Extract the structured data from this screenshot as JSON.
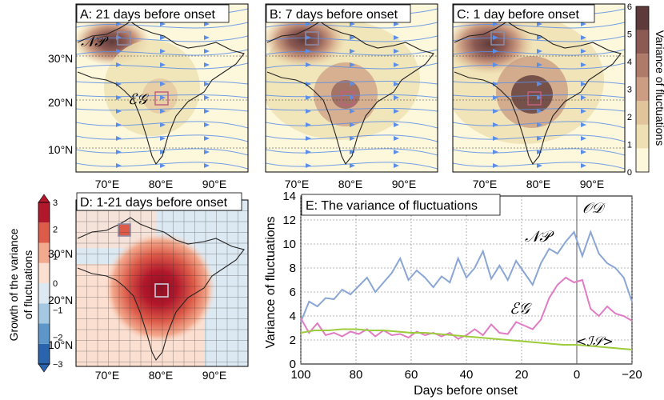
{
  "colors": {
    "land_bg": "#fdf7dc",
    "stream": "#5b8ee6",
    "np_line": "#8aa6d4",
    "eg_line": "#e07bc4",
    "is_line": "#9ccc3c",
    "box": "#8c8ca8"
  },
  "map_labels": {
    "lon": [
      "70°E",
      "80°E",
      "90°E"
    ],
    "lat": [
      "30°N",
      "20°N",
      "10°N"
    ],
    "np": "𝒩𝒫",
    "eg": "ℰ𝒢"
  },
  "panels": [
    {
      "title": "A: 21 days before onset",
      "np_intensity": 1.0,
      "eg_intensity": 0.35
    },
    {
      "title": "B: 7 days before onset",
      "np_intensity": 1.0,
      "eg_intensity": 0.65
    },
    {
      "title": "C: 1 day before onset",
      "np_intensity": 1.0,
      "eg_intensity": 0.9
    }
  ],
  "panel_d": {
    "title": "D: 1-21 days before onset"
  },
  "colorbar_variance": {
    "label": "Variance of fluctuations",
    "ticks": [
      "6",
      "5",
      "4",
      "3",
      "2",
      "1",
      "0"
    ],
    "colors": [
      "#fdf7dc",
      "#eee0b2",
      "#e2c49b",
      "#cc9d82",
      "#b07a6a",
      "#8d5a53",
      "#5e3b3a"
    ]
  },
  "colorbar_growth": {
    "label_line1": "Growth of the variance",
    "label_line2": "of fluctuations",
    "ticks": [
      "3",
      "2",
      "1",
      "0",
      "−1",
      "−2",
      "−3"
    ],
    "colors": [
      "#2a64ac",
      "#5d97c9",
      "#a4c8e2",
      "#dce9f2",
      "#fbe0d2",
      "#f3a98d",
      "#dc5b49",
      "#b2182b"
    ]
  },
  "chart_data": {
    "type": "line",
    "title": "E: The variance of fluctuations",
    "xlabel": "Days before onset",
    "ylabel": "Variance of fluctuations",
    "xlim": [
      100,
      -20
    ],
    "ylim": [
      0,
      14
    ],
    "xticks": [
      "100",
      "80",
      "60",
      "40",
      "20",
      "0",
      "−20"
    ],
    "yticks": [
      "0",
      "2",
      "4",
      "6",
      "8",
      "10",
      "12",
      "14"
    ],
    "onset_label": "𝒪𝒟",
    "onset_day": 0,
    "series": [
      {
        "name": "𝒩𝒫",
        "x": [
          100,
          97,
          94,
          91,
          88,
          85,
          82,
          79,
          76,
          73,
          70,
          67,
          64,
          61,
          58,
          55,
          52,
          49,
          46,
          43,
          40,
          37,
          34,
          31,
          28,
          25,
          22,
          19,
          16,
          13,
          10,
          7,
          4,
          1,
          -2,
          -5,
          -8,
          -11,
          -14,
          -17,
          -20
        ],
        "values": [
          3.5,
          5.2,
          4.8,
          5.5,
          5.4,
          6.2,
          5.8,
          6.5,
          7.2,
          6.0,
          6.8,
          7.6,
          8.8,
          7.0,
          7.8,
          7.2,
          6.4,
          7.3,
          6.8,
          8.8,
          7.2,
          8.0,
          9.4,
          7.1,
          8.2,
          7.0,
          8.6,
          7.6,
          6.6,
          8.4,
          9.6,
          9.2,
          10.2,
          11.0,
          9.0,
          11.0,
          9.2,
          8.4,
          8.0,
          7.2,
          5.2
        ]
      },
      {
        "name": "ℰ𝒢",
        "x": [
          100,
          97,
          94,
          91,
          88,
          85,
          82,
          79,
          76,
          73,
          70,
          67,
          64,
          61,
          58,
          55,
          52,
          49,
          46,
          43,
          40,
          37,
          34,
          31,
          28,
          25,
          22,
          19,
          16,
          13,
          10,
          7,
          4,
          1,
          -2,
          -5,
          -8,
          -11,
          -14,
          -17,
          -20
        ],
        "values": [
          3.8,
          2.6,
          3.4,
          2.4,
          2.6,
          2.3,
          2.7,
          2.5,
          2.9,
          2.3,
          2.8,
          2.4,
          2.5,
          2.2,
          2.7,
          2.4,
          2.6,
          2.3,
          2.6,
          2.1,
          2.4,
          2.9,
          2.4,
          3.3,
          2.6,
          2.5,
          3.5,
          3.2,
          2.9,
          3.7,
          5.5,
          6.6,
          7.2,
          6.8,
          7.0,
          4.6,
          4.0,
          4.8,
          4.2,
          4.0,
          3.6
        ]
      },
      {
        "name": "<ℐ𝒮>",
        "x": [
          100,
          95,
          90,
          85,
          80,
          75,
          70,
          65,
          60,
          55,
          50,
          45,
          40,
          35,
          30,
          25,
          20,
          15,
          10,
          5,
          0,
          -5,
          -10,
          -15,
          -20
        ],
        "values": [
          2.6,
          2.8,
          2.8,
          2.9,
          2.9,
          2.8,
          2.8,
          2.7,
          2.6,
          2.6,
          2.5,
          2.4,
          2.3,
          2.2,
          2.1,
          2.0,
          1.9,
          1.8,
          1.7,
          1.6,
          1.6,
          1.5,
          1.4,
          1.3,
          1.2
        ]
      }
    ]
  }
}
